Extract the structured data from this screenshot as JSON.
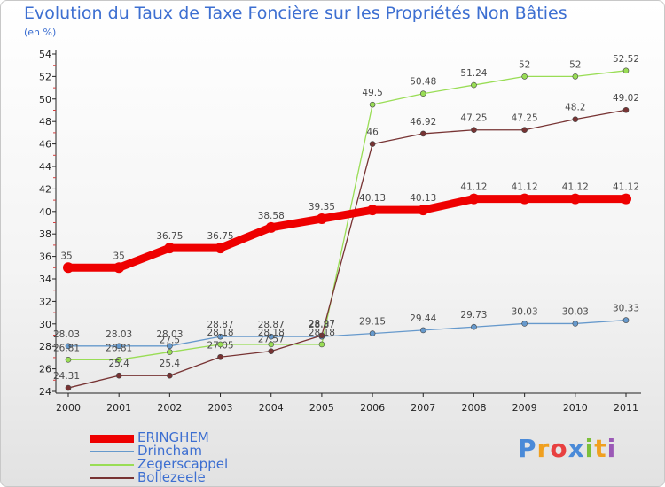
{
  "title": "Evolution du Taux de Taxe Foncière sur les Propriétés Non Bâties",
  "subtitle": "(en %)",
  "chart_data": {
    "type": "line",
    "title": "Evolution du Taux de Taxe Foncière sur les Propriétés Non Bâties",
    "ylabel": "(en %)",
    "xlabel": "",
    "categories": [
      "2000",
      "2001",
      "2002",
      "2003",
      "2004",
      "2005",
      "2006",
      "2007",
      "2008",
      "2009",
      "2010",
      "2011"
    ],
    "ylim": [
      24,
      54
    ],
    "yticks": [
      24,
      26,
      28,
      30,
      32,
      34,
      36,
      38,
      40,
      42,
      44,
      46,
      48,
      50,
      52,
      54
    ],
    "series": [
      {
        "name": "ERINGHEM",
        "color": "#ee0000",
        "values": [
          35,
          35,
          36.75,
          36.75,
          38.58,
          39.35,
          40.13,
          40.13,
          41.12,
          41.12,
          41.12,
          41.12
        ]
      },
      {
        "name": "Drincham",
        "color": "#6699cc",
        "values": [
          28.03,
          28.03,
          28.03,
          28.87,
          28.87,
          28.87,
          29.15,
          29.44,
          29.73,
          30.03,
          30.03,
          30.33
        ]
      },
      {
        "name": "Zegerscappel",
        "color": "#99dd55",
        "values": [
          26.81,
          26.81,
          27.5,
          28.18,
          28.18,
          28.18,
          49.5,
          50.48,
          51.24,
          52,
          52,
          52.52
        ]
      },
      {
        "name": "Bollezeele",
        "color": "#773333",
        "values": [
          24.31,
          25.4,
          25.4,
          27.05,
          27.57,
          28.97,
          46,
          46.92,
          47.25,
          47.25,
          48.2,
          49.02
        ]
      }
    ],
    "data_labels": {
      "ERINGHEM": [
        "35",
        "35",
        "36.75",
        "36.75",
        "38.58",
        "39.35",
        "40.13",
        "40.13",
        "41.12",
        "41.12",
        "41.12",
        "41.12"
      ],
      "Drincham": [
        "28.03",
        "28.03",
        "28.03",
        "28.87",
        "28.87",
        "28.87",
        "29.15",
        "29.44",
        "29.73",
        "30.03",
        "30.03",
        "30.33"
      ],
      "Zegerscappel": [
        "26.81",
        "26.81",
        "27.5",
        "28.18",
        "28.18",
        "28.18",
        "49.5",
        "50.48",
        "51.24",
        "52",
        "52",
        "52.52"
      ],
      "Bollezeele": [
        "24.31",
        "25.4",
        "25.4",
        "27.05",
        "27.57",
        "28.97",
        "46",
        "46.92",
        "47.25",
        "47.25",
        "48.2",
        "49.02"
      ]
    },
    "legend": "bottom-left",
    "grid": false
  },
  "logo": {
    "letters": [
      "P",
      "r",
      "o",
      "x",
      "i",
      "t",
      "i"
    ],
    "colors": [
      "#4a8ad8",
      "#f0a020",
      "#e84040",
      "#4a8ad8",
      "#7cbf3a",
      "#f0a020",
      "#9b59b6"
    ]
  }
}
